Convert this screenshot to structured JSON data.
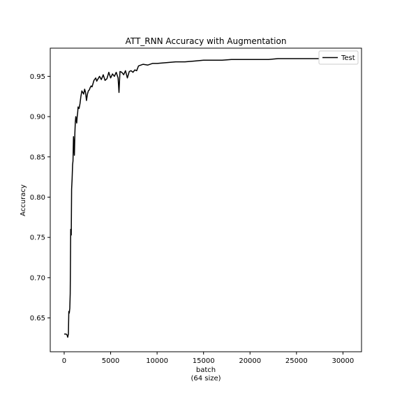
{
  "chart_data": {
    "type": "line",
    "title": "ATT_RNN Accuracy with Augmentation",
    "xlabel_lines": [
      "batch",
      "(64 size)"
    ],
    "ylabel": "Accuracy",
    "xlim": [
      -1500,
      32000
    ],
    "ylim": [
      0.608,
      0.985
    ],
    "xticks": [
      0,
      5000,
      10000,
      15000,
      20000,
      25000,
      30000
    ],
    "xtick_labels": [
      "0",
      "5000",
      "10000",
      "15000",
      "20000",
      "25000",
      "30000"
    ],
    "yticks": [
      0.65,
      0.7,
      0.75,
      0.8,
      0.85,
      0.9,
      0.95
    ],
    "ytick_labels": [
      "0.65",
      "0.70",
      "0.75",
      "0.80",
      "0.85",
      "0.90",
      "0.95"
    ],
    "grid": false,
    "legend": {
      "position": "upper right",
      "entries": [
        "Test"
      ]
    },
    "series": [
      {
        "name": "Test",
        "color": "#000000",
        "x": [
          0,
          200,
          300,
          380,
          450,
          500,
          550,
          600,
          650,
          700,
          760,
          800,
          850,
          900,
          950,
          1000,
          1100,
          1150,
          1200,
          1250,
          1300,
          1350,
          1400,
          1450,
          1500,
          1600,
          1700,
          1800,
          1900,
          2000,
          2100,
          2200,
          2300,
          2400,
          2500,
          2600,
          2700,
          2800,
          2900,
          3000,
          3200,
          3400,
          3500,
          3600,
          3800,
          4000,
          4200,
          4400,
          4600,
          4800,
          5000,
          5200,
          5400,
          5600,
          5800,
          5900,
          6000,
          6200,
          6400,
          6600,
          6800,
          7000,
          7200,
          7400,
          7600,
          7800,
          8000,
          8500,
          9000,
          9500,
          10000,
          11000,
          12000,
          13000,
          14000,
          15000,
          16000,
          17000,
          18000,
          19000,
          20000,
          21000,
          22000,
          23000,
          24000,
          25000,
          26000,
          27000,
          28000,
          29000,
          30000
        ],
        "y": [
          0.63,
          0.63,
          0.629,
          0.626,
          0.63,
          0.658,
          0.656,
          0.662,
          0.68,
          0.76,
          0.753,
          0.81,
          0.822,
          0.84,
          0.845,
          0.875,
          0.852,
          0.88,
          0.893,
          0.9,
          0.896,
          0.892,
          0.9,
          0.905,
          0.912,
          0.91,
          0.916,
          0.925,
          0.932,
          0.93,
          0.928,
          0.934,
          0.93,
          0.92,
          0.928,
          0.932,
          0.933,
          0.936,
          0.938,
          0.937,
          0.945,
          0.948,
          0.944,
          0.946,
          0.95,
          0.946,
          0.952,
          0.945,
          0.947,
          0.955,
          0.948,
          0.953,
          0.95,
          0.955,
          0.948,
          0.93,
          0.956,
          0.955,
          0.952,
          0.957,
          0.948,
          0.956,
          0.957,
          0.955,
          0.958,
          0.957,
          0.963,
          0.965,
          0.964,
          0.966,
          0.966,
          0.967,
          0.968,
          0.968,
          0.969,
          0.97,
          0.97,
          0.97,
          0.971,
          0.971,
          0.971,
          0.971,
          0.971,
          0.972,
          0.972,
          0.972,
          0.972,
          0.972,
          0.972,
          0.972,
          0.972
        ]
      }
    ]
  }
}
